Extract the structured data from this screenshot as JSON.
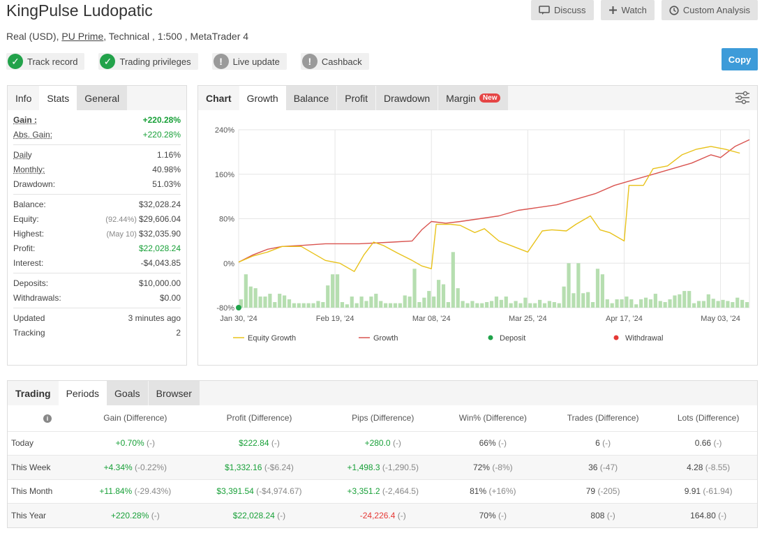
{
  "header": {
    "title": "KingPulse Ludopatic",
    "account_type": "Real (USD),",
    "broker": "PU Prime",
    "details": ", Technical , 1:500 , MetaTrader 4"
  },
  "actions": {
    "discuss": "Discuss",
    "watch": "Watch",
    "custom_analysis": "Custom Analysis",
    "copy": "Copy"
  },
  "badges": [
    {
      "label": "Track record",
      "icon": "check-icon"
    },
    {
      "label": "Trading privileges",
      "icon": "check-icon"
    },
    {
      "label": "Live update",
      "icon": "exclamation-icon"
    },
    {
      "label": "Cashback",
      "icon": "exclamation-icon"
    }
  ],
  "stats_tabs": [
    "Info",
    "Stats",
    "General"
  ],
  "stats": {
    "gain": {
      "label": "Gain :",
      "value": "+220.28%"
    },
    "abs_gain": {
      "label": "Abs. Gain:",
      "value": "+220.28%"
    },
    "daily": {
      "label": "Daily",
      "value": "1.16%"
    },
    "monthly": {
      "label": "Monthly:",
      "value": "40.98%"
    },
    "drawdown": {
      "label": "Drawdown:",
      "value": "51.03%"
    },
    "balance": {
      "label": "Balance:",
      "value": "$32,028.24"
    },
    "equity": {
      "label": "Equity:",
      "note": "(92.44%)",
      "value": "$29,606.04"
    },
    "highest": {
      "label": "Highest:",
      "note": "(May 10)",
      "value": "$32,035.90"
    },
    "profit": {
      "label": "Profit:",
      "value": "$22,028.24"
    },
    "interest": {
      "label": "Interest:",
      "value": "-$4,043.85"
    },
    "deposits": {
      "label": "Deposits:",
      "value": "$10,000.00"
    },
    "withdrawals": {
      "label": "Withdrawals:",
      "value": "$0.00"
    },
    "updated": {
      "label": "Updated",
      "value": "3 minutes ago"
    },
    "tracking": {
      "label": "Tracking",
      "value": "2"
    }
  },
  "chart_tabs": {
    "chart": "Chart",
    "growth": "Growth",
    "balance": "Balance",
    "profit": "Profit",
    "drawdown": "Drawdown",
    "margin": "Margin",
    "new": "New"
  },
  "chart_data": {
    "type": "line",
    "y_ticks": [
      "240%",
      "160%",
      "80%",
      "0%",
      "-80%"
    ],
    "y_tick_values": [
      240,
      160,
      80,
      0,
      -80
    ],
    "ylim": [
      -80,
      240
    ],
    "x_ticks": [
      "Jan 30, '24",
      "Feb 19, '24",
      "Mar 08, '24",
      "Mar 25, '24",
      "Apr 17, '24",
      "May 03, '24"
    ],
    "x_tick_index": [
      0,
      20,
      40,
      60,
      80,
      100
    ],
    "x_count": 106,
    "grid": true,
    "legend_position": "bottom",
    "colors": {
      "equity": "#e8c21a",
      "growth": "#d9534f",
      "deposit": "#1fa34a",
      "withdrawal": "#e53935",
      "bars": "#b6deb0"
    },
    "legend": [
      "Equity Growth",
      "Growth",
      "Deposit",
      "Withdrawal"
    ],
    "series": [
      {
        "name": "Growth",
        "points": [
          [
            0,
            2
          ],
          [
            3,
            15
          ],
          [
            6,
            25
          ],
          [
            9,
            30
          ],
          [
            13,
            32
          ],
          [
            18,
            35
          ],
          [
            25,
            35
          ],
          [
            32,
            38
          ],
          [
            36,
            40
          ],
          [
            38,
            60
          ],
          [
            40,
            75
          ],
          [
            43,
            72
          ],
          [
            46,
            75
          ],
          [
            50,
            80
          ],
          [
            54,
            85
          ],
          [
            58,
            95
          ],
          [
            62,
            100
          ],
          [
            66,
            105
          ],
          [
            70,
            115
          ],
          [
            74,
            125
          ],
          [
            78,
            140
          ],
          [
            82,
            150
          ],
          [
            86,
            160
          ],
          [
            90,
            170
          ],
          [
            94,
            180
          ],
          [
            98,
            195
          ],
          [
            100,
            190
          ],
          [
            103,
            210
          ],
          [
            106,
            222
          ]
        ]
      },
      {
        "name": "Equity Growth",
        "points": [
          [
            0,
            2
          ],
          [
            3,
            13
          ],
          [
            6,
            20
          ],
          [
            9,
            30
          ],
          [
            13,
            30
          ],
          [
            15,
            20
          ],
          [
            18,
            5
          ],
          [
            21,
            0
          ],
          [
            24,
            -15
          ],
          [
            26,
            15
          ],
          [
            28,
            38
          ],
          [
            30,
            32
          ],
          [
            33,
            18
          ],
          [
            36,
            5
          ],
          [
            38,
            -5
          ],
          [
            40,
            -10
          ],
          [
            41,
            70
          ],
          [
            44,
            70
          ],
          [
            46,
            68
          ],
          [
            49,
            55
          ],
          [
            51,
            62
          ],
          [
            54,
            40
          ],
          [
            57,
            30
          ],
          [
            60,
            20
          ],
          [
            63,
            58
          ],
          [
            65,
            60
          ],
          [
            68,
            58
          ],
          [
            70,
            70
          ],
          [
            73,
            85
          ],
          [
            75,
            60
          ],
          [
            77,
            55
          ],
          [
            80,
            40
          ],
          [
            81,
            140
          ],
          [
            84,
            140
          ],
          [
            86,
            170
          ],
          [
            89,
            175
          ],
          [
            92,
            195
          ],
          [
            95,
            205
          ],
          [
            98,
            210
          ],
          [
            101,
            205
          ],
          [
            104,
            198
          ]
        ]
      }
    ],
    "deposit_point": [
      0,
      -80
    ],
    "bars": [
      15,
      60,
      38,
      35,
      20,
      20,
      25,
      10,
      25,
      22,
      15,
      8,
      8,
      8,
      8,
      8,
      12,
      10,
      40,
      60,
      60,
      10,
      6,
      20,
      8,
      20,
      12,
      20,
      25,
      12,
      8,
      8,
      8,
      8,
      22,
      20,
      70,
      10,
      18,
      30,
      20,
      50,
      42,
      10,
      100,
      35,
      12,
      8,
      12,
      8,
      8,
      10,
      12,
      20,
      14,
      20,
      8,
      12,
      8,
      18,
      8,
      8,
      14,
      8,
      12,
      10,
      8,
      38,
      80,
      26,
      80,
      26,
      28,
      10,
      70,
      60,
      15,
      8,
      15,
      15,
      20,
      15,
      6,
      15,
      18,
      15,
      25,
      12,
      10,
      15,
      22,
      24,
      30,
      30,
      8,
      12,
      12,
      24,
      16,
      12,
      14,
      12,
      10,
      18,
      14,
      10
    ]
  },
  "trading_tabs": [
    "Trading",
    "Periods",
    "Goals",
    "Browser"
  ],
  "periods": {
    "headers": [
      "",
      "Gain (Difference)",
      "Profit (Difference)",
      "Pips (Difference)",
      "Win% (Difference)",
      "Trades (Difference)",
      "Lots (Difference)"
    ],
    "rows": [
      {
        "label": "Today",
        "cells": [
          [
            "+0.70%",
            "(-)"
          ],
          [
            "$222.84",
            "(-)"
          ],
          [
            "+280.0",
            "(-)"
          ],
          [
            "66%",
            "(-)"
          ],
          [
            "6",
            "(-)"
          ],
          [
            "0.66",
            "(-)"
          ]
        ]
      },
      {
        "label": "This Week",
        "cells": [
          [
            "+4.34%",
            "(-0.22%)"
          ],
          [
            "$1,332.16",
            "(-$6.24)"
          ],
          [
            "+1,498.3",
            "(-1,290.5)"
          ],
          [
            "72%",
            "(-8%)"
          ],
          [
            "36",
            "(-47)"
          ],
          [
            "4.28",
            "(-8.55)"
          ]
        ]
      },
      {
        "label": "This Month",
        "cells": [
          [
            "+11.84%",
            "(-29.43%)"
          ],
          [
            "$3,391.54",
            "(-$4,974.67)"
          ],
          [
            "+3,351.2",
            "(-2,464.5)"
          ],
          [
            "81%",
            "(+16%)"
          ],
          [
            "79",
            "(-205)"
          ],
          [
            "9.91",
            "(-61.94)"
          ]
        ]
      },
      {
        "label": "This Year",
        "cells": [
          [
            "+220.28%",
            "(-)"
          ],
          [
            "$22,028.24",
            "(-)"
          ],
          [
            "-24,226.4",
            "(-)"
          ],
          [
            "70%",
            "(-)"
          ],
          [
            "808",
            "(-)"
          ],
          [
            "164.80",
            "(-)"
          ]
        ]
      }
    ],
    "colors": [
      [
        "g",
        "g",
        "g",
        "n",
        "n",
        "n"
      ],
      [
        "g",
        "g",
        "g",
        "n",
        "n",
        "n"
      ],
      [
        "g",
        "g",
        "g",
        "n",
        "n",
        "n"
      ],
      [
        "g",
        "g",
        "r",
        "n",
        "n",
        "n"
      ]
    ]
  }
}
